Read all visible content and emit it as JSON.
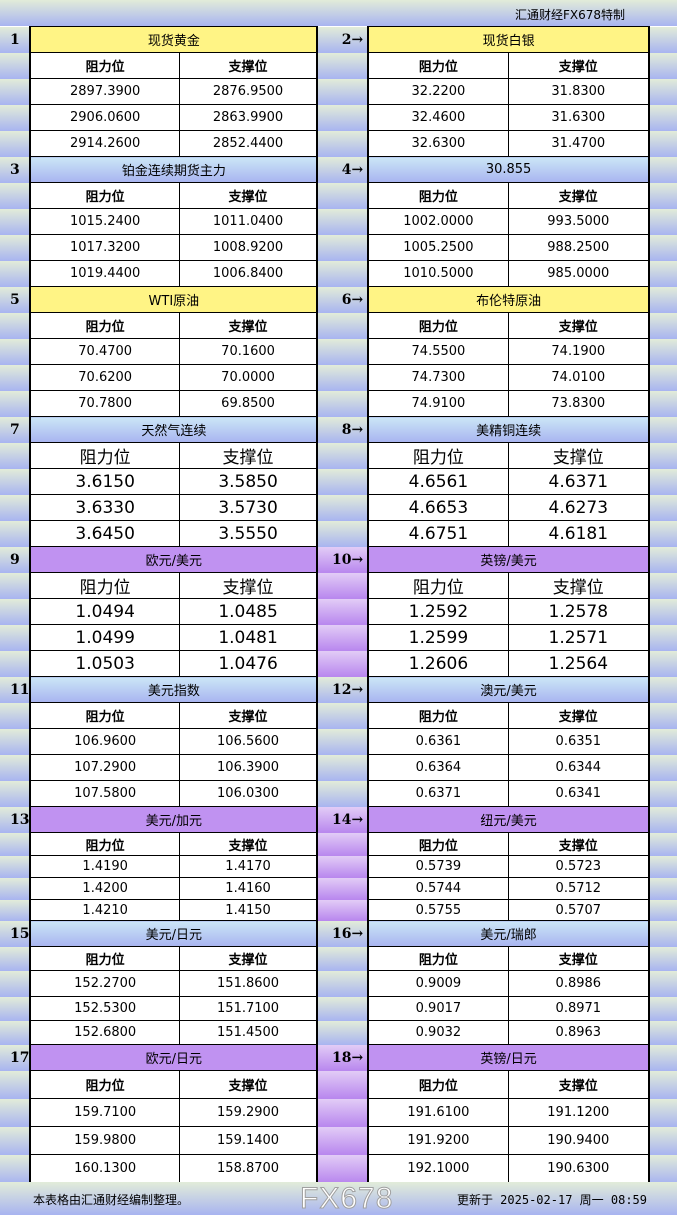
{
  "header": {
    "brand": "汇通财经FX678特制"
  },
  "col_headers": {
    "resistance": "阻力位",
    "support": "支撑位"
  },
  "colors": {
    "yellow": "#fff485",
    "blue": "#a8b4f0",
    "purple": "#c092f1"
  },
  "sections": [
    {
      "num": "1",
      "title": "现货黄金",
      "color": "yellow",
      "rows": [
        [
          "2897.3900",
          "2876.9500"
        ],
        [
          "2906.0600",
          "2863.9900"
        ],
        [
          "2914.2600",
          "2852.4400"
        ]
      ]
    },
    {
      "num": "2→",
      "title": "现货白银",
      "color": "yellow",
      "rows": [
        [
          "32.2200",
          "31.8300"
        ],
        [
          "32.4600",
          "31.6300"
        ],
        [
          "32.6300",
          "31.4700"
        ]
      ]
    },
    {
      "num": "3",
      "title": "铂金连续期货主力",
      "color": "blue",
      "rows": [
        [
          "1015.2400",
          "1011.0400"
        ],
        [
          "1017.3200",
          "1008.9200"
        ],
        [
          "1019.4400",
          "1006.8400"
        ]
      ]
    },
    {
      "num": "4→",
      "title": "30.855",
      "color": "blue",
      "rows": [
        [
          "1002.0000",
          "993.5000"
        ],
        [
          "1005.2500",
          "988.2500"
        ],
        [
          "1010.5000",
          "985.0000"
        ]
      ]
    },
    {
      "num": "5",
      "title": "WTI原油",
      "color": "yellow",
      "rows": [
        [
          "70.4700",
          "70.1600"
        ],
        [
          "70.6200",
          "70.0000"
        ],
        [
          "70.7800",
          "69.8500"
        ]
      ]
    },
    {
      "num": "6→",
      "title": "布伦特原油",
      "color": "yellow",
      "rows": [
        [
          "74.5500",
          "74.1900"
        ],
        [
          "74.7300",
          "74.0100"
        ],
        [
          "74.9100",
          "73.8300"
        ]
      ]
    },
    {
      "num": "7",
      "title": "天然气连续",
      "color": "blue",
      "rows": [
        [
          "3.6150",
          "3.5850"
        ],
        [
          "3.6330",
          "3.5730"
        ],
        [
          "3.6450",
          "3.5550"
        ]
      ]
    },
    {
      "num": "8→",
      "title": "美精铜连续",
      "color": "blue",
      "rows": [
        [
          "4.6561",
          "4.6371"
        ],
        [
          "4.6653",
          "4.6273"
        ],
        [
          "4.6751",
          "4.6181"
        ]
      ]
    },
    {
      "num": "9",
      "title": "欧元/美元",
      "color": "purple",
      "rows": [
        [
          "1.0494",
          "1.0485"
        ],
        [
          "1.0499",
          "1.0481"
        ],
        [
          "1.0503",
          "1.0476"
        ]
      ]
    },
    {
      "num": "10→",
      "title": "英镑/美元",
      "color": "purple",
      "rows": [
        [
          "1.2592",
          "1.2578"
        ],
        [
          "1.2599",
          "1.2571"
        ],
        [
          "1.2606",
          "1.2564"
        ]
      ]
    },
    {
      "num": "11",
      "title": "美元指数",
      "color": "blue",
      "rows": [
        [
          "106.9600",
          "106.5600"
        ],
        [
          "107.2900",
          "106.3900"
        ],
        [
          "107.5800",
          "106.0300"
        ]
      ]
    },
    {
      "num": "12→",
      "title": "澳元/美元",
      "color": "blue",
      "rows": [
        [
          "0.6361",
          "0.6351"
        ],
        [
          "0.6364",
          "0.6344"
        ],
        [
          "0.6371",
          "0.6341"
        ]
      ]
    },
    {
      "num": "13",
      "title": "美元/加元",
      "color": "purple",
      "rows": [
        [
          "1.4190",
          "1.4170"
        ],
        [
          "1.4200",
          "1.4160"
        ],
        [
          "1.4210",
          "1.4150"
        ]
      ]
    },
    {
      "num": "14→",
      "title": "纽元/美元",
      "color": "purple",
      "rows": [
        [
          "0.5739",
          "0.5723"
        ],
        [
          "0.5744",
          "0.5712"
        ],
        [
          "0.5755",
          "0.5707"
        ]
      ]
    },
    {
      "num": "15",
      "title": "美元/日元",
      "color": "blue",
      "rows": [
        [
          "152.2700",
          "151.8600"
        ],
        [
          "152.5300",
          "151.7100"
        ],
        [
          "152.6800",
          "151.4500"
        ]
      ]
    },
    {
      "num": "16→",
      "title": "美元/瑞郎",
      "color": "blue",
      "rows": [
        [
          "0.9009",
          "0.8986"
        ],
        [
          "0.9017",
          "0.8971"
        ],
        [
          "0.9032",
          "0.8963"
        ]
      ]
    },
    {
      "num": "17",
      "title": "欧元/日元",
      "color": "purple",
      "rows": [
        [
          "159.7100",
          "159.2900"
        ],
        [
          "159.9800",
          "159.1400"
        ],
        [
          "160.1300",
          "158.8700"
        ]
      ]
    },
    {
      "num": "18→",
      "title": "英镑/日元",
      "color": "purple",
      "rows": [
        [
          "191.6100",
          "191.1200"
        ],
        [
          "191.9200",
          "190.9400"
        ],
        [
          "192.1000",
          "190.6300"
        ]
      ]
    }
  ],
  "footer": {
    "note": "本表格由汇通财经编制整理。",
    "updated": "更新于 2025-02-17 周一 08:59"
  },
  "watermark": "FX678"
}
